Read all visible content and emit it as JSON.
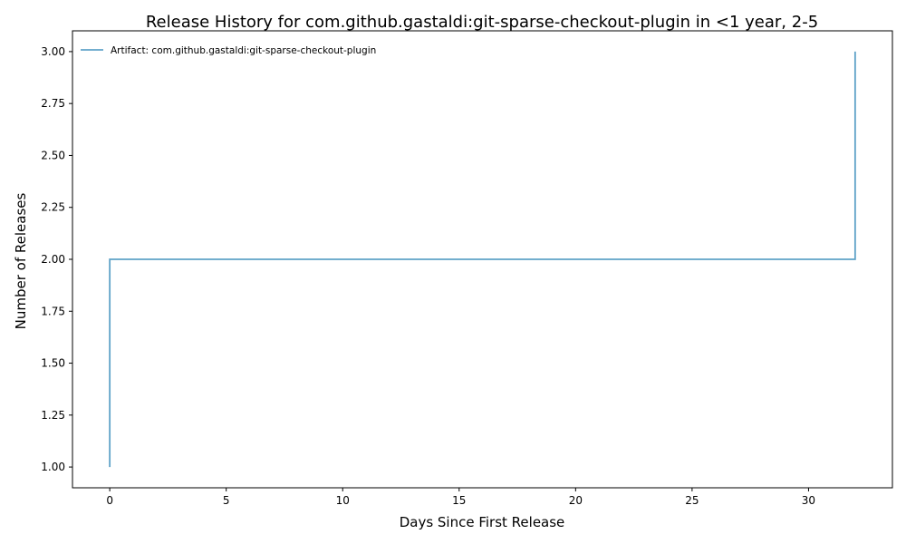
{
  "chart_data": {
    "type": "line",
    "step": "post",
    "title": "Release History for com.github.gastaldi:git-sparse-checkout-plugin in <1 year, 2-5",
    "xlabel": "Days Since First Release",
    "ylabel": "Number of Releases",
    "xlim": [
      -1.6,
      33.6
    ],
    "ylim": [
      0.9,
      3.1
    ],
    "xticks": [
      0,
      5,
      10,
      15,
      20,
      25,
      30
    ],
    "yticks": [
      1.0,
      1.25,
      1.5,
      1.75,
      2.0,
      2.25,
      2.5,
      2.75,
      3.0
    ],
    "ytick_labels": [
      "1.00",
      "1.25",
      "1.50",
      "1.75",
      "2.00",
      "2.25",
      "2.50",
      "2.75",
      "3.00"
    ],
    "grid": false,
    "legend_position": "upper-left",
    "series": [
      {
        "name": "Artifact: com.github.gastaldi:git-sparse-checkout-plugin",
        "color": "#5fa2c8",
        "x": [
          0,
          0,
          32,
          32
        ],
        "y": [
          1,
          2,
          2,
          3
        ]
      }
    ]
  }
}
